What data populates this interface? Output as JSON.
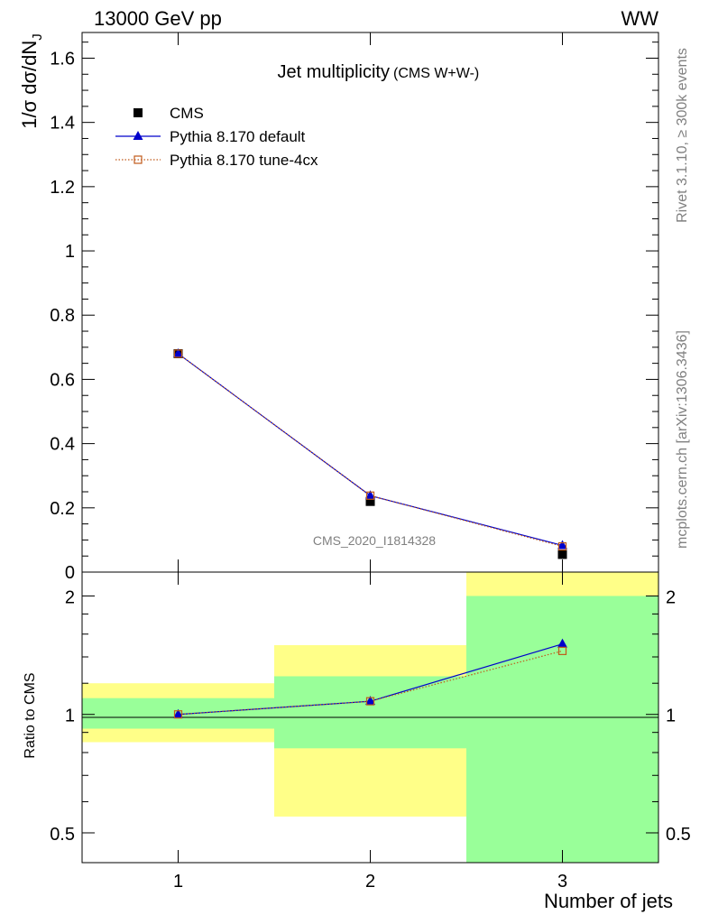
{
  "header": {
    "energy_label": "13000 GeV pp",
    "process_label": "WW"
  },
  "side": {
    "rivet_label": "Rivet 3.1.10, ≥ 300k events",
    "mcplots_label": "mcplots.cern.ch [arXiv:1306.3436]"
  },
  "chart_data": [
    {
      "type": "line",
      "title": "Jet multiplicity",
      "subtitle": "(CMS W+W-)",
      "analysis_label": "CMS_2020_I1814328",
      "ylabel": "1/σ dσ/dN",
      "ylabel_subscript": "J",
      "xlim": [
        0.5,
        3.5
      ],
      "ylim": [
        0,
        1.68
      ],
      "x_ticks": [
        1,
        2,
        3
      ],
      "y_ticks": [
        0,
        0.2,
        0.4,
        0.6,
        0.8,
        1,
        1.2,
        1.4,
        1.6
      ],
      "y_tick_labels": [
        "0",
        "0.2",
        "0.4",
        "0.6",
        "0.8",
        "1",
        "1.2",
        "1.4",
        "1.6"
      ],
      "legend_position": "top-left",
      "series": [
        {
          "name": "CMS",
          "marker": "filled-square",
          "color": "#000000",
          "x": [
            1,
            2,
            3
          ],
          "y": [
            0.68,
            0.22,
            0.055
          ]
        },
        {
          "name": "Pythia 8.170 default",
          "marker": "filled-triangle",
          "color": "#0000cc",
          "x": [
            1,
            2,
            3
          ],
          "y": [
            0.68,
            0.238,
            0.083
          ]
        },
        {
          "name": "Pythia 8.170 tune-4cx",
          "marker": "open-square",
          "color": "#c05a1a",
          "line": "dotted",
          "x": [
            1,
            2,
            3
          ],
          "y": [
            0.68,
            0.238,
            0.08
          ]
        }
      ]
    },
    {
      "type": "line",
      "ylabel": "Ratio to CMS",
      "xlabel": "Number of jets",
      "xlim": [
        0.5,
        3.5
      ],
      "ylim": [
        0.42,
        2.3
      ],
      "y_scale": "log",
      "x_ticks": [
        1,
        2,
        3
      ],
      "x_tick_labels": [
        "1",
        "2",
        "3"
      ],
      "y_ticks": [
        0.5,
        1,
        2
      ],
      "y_tick_labels": [
        "0.5",
        "1",
        "2"
      ],
      "bands": [
        {
          "x_range": [
            0.5,
            1.5
          ],
          "green": [
            0.92,
            1.1
          ],
          "yellow": [
            0.85,
            1.2
          ]
        },
        {
          "x_range": [
            1.5,
            2.5
          ],
          "green": [
            0.82,
            1.25
          ],
          "yellow": [
            0.55,
            1.5
          ]
        },
        {
          "x_range": [
            2.5,
            3.5
          ],
          "green": [
            0.42,
            2.0
          ],
          "yellow": [
            0.42,
            2.3
          ]
        }
      ],
      "band_colors": {
        "green": "#99ff99",
        "yellow": "#ffff88"
      },
      "series": [
        {
          "name": "Pythia 8.170 default",
          "marker": "filled-triangle",
          "color": "#0000cc",
          "x": [
            1,
            2,
            3
          ],
          "y": [
            1.0,
            1.08,
            1.51
          ]
        },
        {
          "name": "Pythia 8.170 tune-4cx",
          "marker": "open-square",
          "color": "#c05a1a",
          "line": "dotted",
          "x": [
            1,
            2,
            3
          ],
          "y": [
            1.0,
            1.08,
            1.45
          ]
        }
      ]
    }
  ]
}
